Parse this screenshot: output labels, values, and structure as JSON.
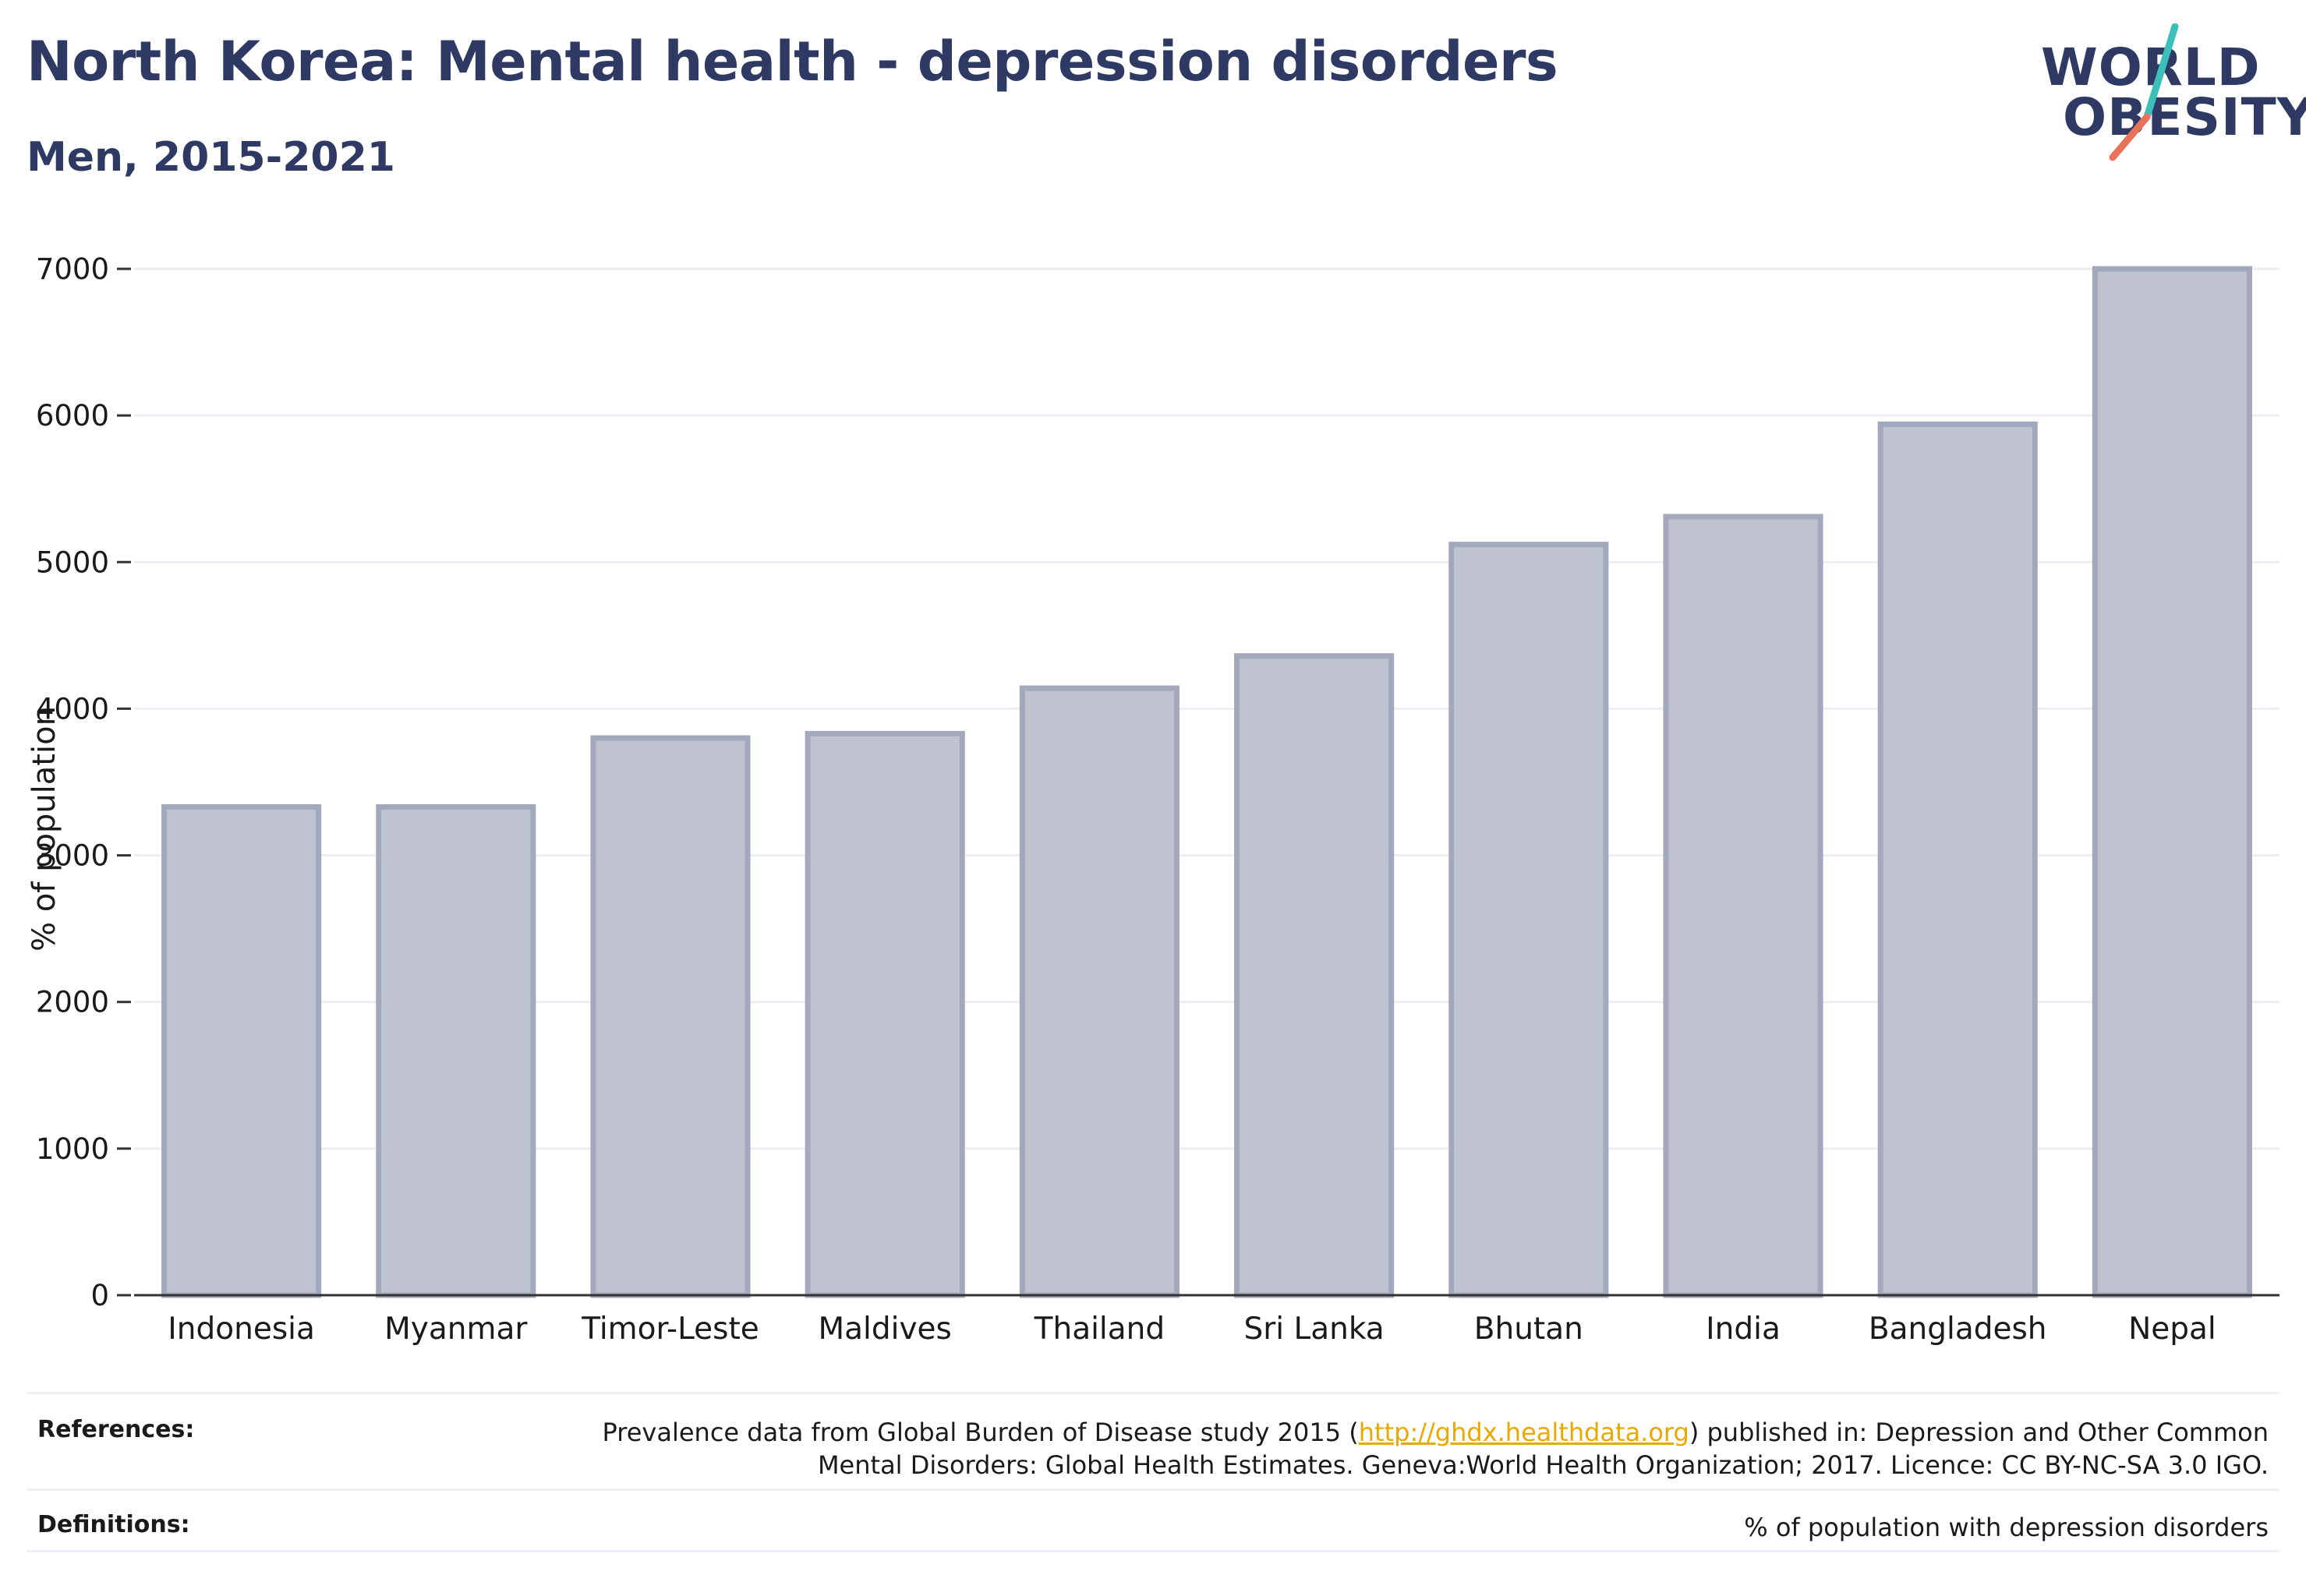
{
  "header": {
    "title": "North Korea: Mental health - depression disorders",
    "subtitle": "Men, 2015-2021"
  },
  "logo": {
    "line1": "WORLD",
    "line2": "OBESITY",
    "brand_color": "#2e3a63",
    "slash_top_color": "#3bbfb8",
    "slash_bottom_color": "#e8735a"
  },
  "chart_data": {
    "type": "bar",
    "categories": [
      "Indonesia",
      "Myanmar",
      "Timor-Leste",
      "Maldives",
      "Thailand",
      "Sri Lanka",
      "Bhutan",
      "India",
      "Bangladesh",
      "Nepal"
    ],
    "values": [
      3330,
      3330,
      3800,
      3830,
      4140,
      4360,
      5120,
      5310,
      5940,
      7000
    ],
    "ylabel": "% of population",
    "xlabel": "",
    "ylim": [
      0,
      7000
    ],
    "yticks": [
      0,
      1000,
      2000,
      3000,
      4000,
      5000,
      6000,
      7000
    ],
    "grid": true,
    "bar_fill": "#bfc2cf",
    "bar_stroke": "#a3a8bd"
  },
  "references": {
    "label": "References:",
    "line1_before": "Prevalence data from Global Burden of Disease study 2015 (",
    "link": "http://ghdx.healthdata.org",
    "line1_after": ") published in: Depression and Other Common",
    "line2": "Mental Disorders: Global Health Estimates. Geneva:World Health Organization; 2017. Licence: CC BY-NC-SA 3.0 IGO."
  },
  "definitions": {
    "label": "Definitions:",
    "text": "% of population with depression disorders"
  }
}
